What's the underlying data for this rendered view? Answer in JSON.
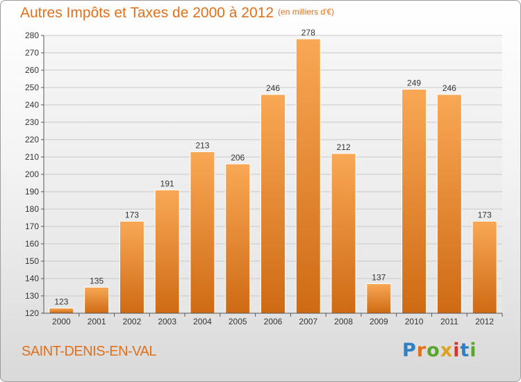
{
  "header": {
    "title": "Autres Impôts et Taxes de 2000 à 2012",
    "unit": "(en milliers d'€)"
  },
  "footer": {
    "city": "SAINT-DENIS-EN-VAL",
    "logo": "Proxiti"
  },
  "colors": {
    "accent": "#e0701a",
    "bar_light": "#f9a855",
    "bar_dark": "#cf6a14"
  },
  "chart_data": {
    "type": "bar",
    "title": "Autres Impôts et Taxes de 2000 à 2012",
    "subtitle": "(en milliers d'€)",
    "categories": [
      "2000",
      "2001",
      "2002",
      "2003",
      "2004",
      "2005",
      "2006",
      "2007",
      "2008",
      "2009",
      "2010",
      "2011",
      "2012"
    ],
    "values": [
      123,
      135,
      173,
      191,
      213,
      206,
      246,
      278,
      212,
      137,
      249,
      246,
      173
    ],
    "ylim": [
      120,
      280
    ],
    "yticks": [
      120,
      130,
      140,
      150,
      160,
      170,
      180,
      190,
      200,
      210,
      220,
      230,
      240,
      250,
      260,
      270,
      280
    ],
    "grid": true,
    "xlabel": "",
    "ylabel": ""
  }
}
